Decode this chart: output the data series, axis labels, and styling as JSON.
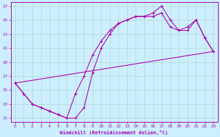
{
  "xlabel": "Windchill (Refroidissement éolien,°C)",
  "bg_color": "#cceeff",
  "grid_color": "#b0d8cc",
  "line_color": "#aa00aa",
  "xlim": [
    -0.5,
    23.5
  ],
  "ylim": [
    10.5,
    27.5
  ],
  "xticks": [
    0,
    1,
    2,
    3,
    4,
    5,
    6,
    7,
    8,
    9,
    10,
    11,
    12,
    13,
    14,
    15,
    16,
    17,
    18,
    19,
    20,
    21,
    22,
    23
  ],
  "yticks": [
    11,
    13,
    15,
    17,
    19,
    21,
    23,
    25,
    27
  ],
  "line1_x": [
    0,
    1,
    2,
    3,
    4,
    5,
    6,
    7,
    8,
    9,
    10,
    11,
    12,
    13,
    14,
    15,
    16,
    17,
    18,
    19,
    20,
    21,
    22,
    23
  ],
  "line1_y": [
    16,
    14.5,
    13,
    12.5,
    12,
    11.5,
    11,
    11,
    12.5,
    17.5,
    21,
    23,
    24.5,
    25,
    25.5,
    25.5,
    26,
    27,
    25,
    23.5,
    24,
    25,
    22.5,
    20.5
  ],
  "line2_x": [
    0,
    1,
    2,
    3,
    4,
    5,
    6,
    7,
    8,
    9,
    10,
    11,
    12,
    13,
    14,
    15,
    16,
    17,
    18,
    19,
    20,
    21,
    22,
    23
  ],
  "line2_y": [
    16,
    14.5,
    13,
    12.5,
    12,
    11.5,
    11,
    14.5,
    17,
    20,
    22,
    23.5,
    24.5,
    25,
    25.5,
    25.5,
    25.5,
    26,
    24,
    23.5,
    23.5,
    25,
    22.5,
    20.5
  ],
  "line3_x": [
    0,
    23
  ],
  "line3_y": [
    16,
    20.5
  ]
}
